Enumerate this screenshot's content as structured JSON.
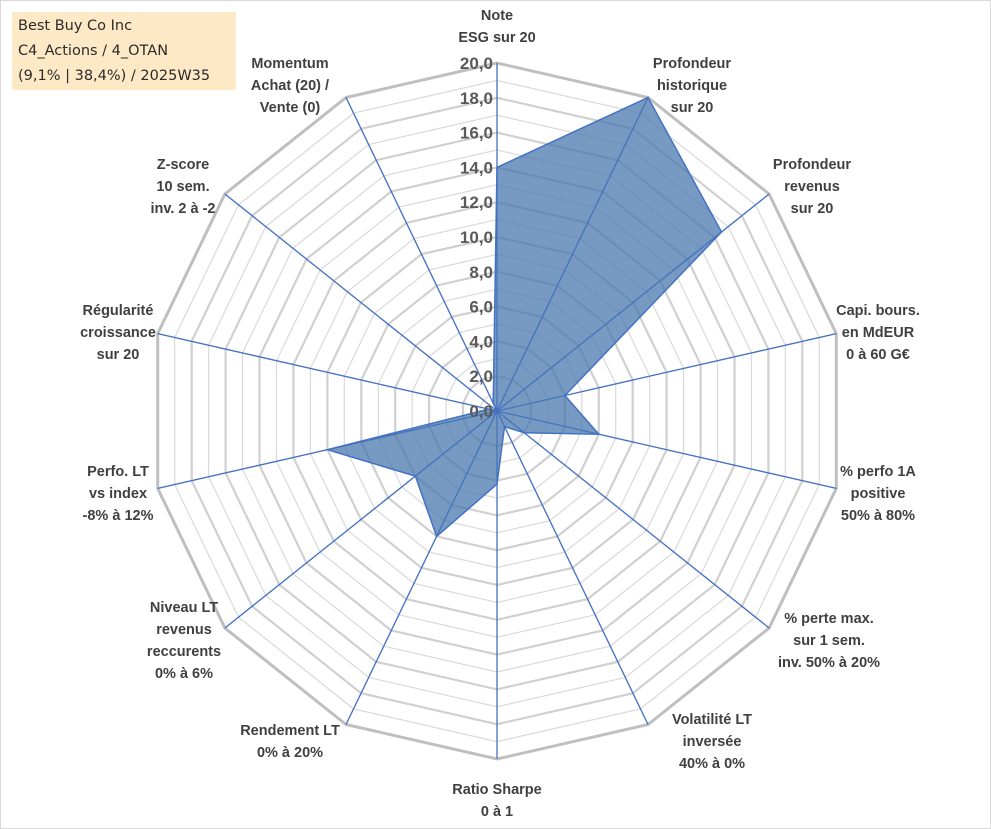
{
  "header": {
    "lines": [
      "Best Buy Co Inc",
      "C4_Actions / 4_OTAN",
      "(9,1% | 38,4%) / 2025W35"
    ]
  },
  "colors": {
    "fill": "#4a78ad",
    "spoke": "#4472c4",
    "outer_ring": "#bfbfbf",
    "inner_ring": "#d9d9d9",
    "info_bg": "#fde9c6"
  },
  "chart_data": {
    "type": "radar",
    "title": "",
    "range": [
      0,
      20
    ],
    "tick_step": 2,
    "tick_labels": [
      "0,0",
      "2,0",
      "4,0",
      "6,0",
      "8,0",
      "10,0",
      "12,0",
      "14,0",
      "16,0",
      "18,0",
      "20,0"
    ],
    "axes": [
      {
        "label": [
          "Note",
          "ESG sur 20"
        ],
        "value": 14.0
      },
      {
        "label": [
          "Profondeur",
          "historique",
          "sur 20"
        ],
        "value": 20.0
      },
      {
        "label": [
          "Profondeur",
          "revenus",
          "sur 20"
        ],
        "value": 16.5
      },
      {
        "label": [
          "Capi. bours.",
          "en MdEUR",
          "0 à 60 G€"
        ],
        "value": 4.0
      },
      {
        "label": [
          "% perfo 1A",
          "positive",
          "50% à 80%"
        ],
        "value": 6.0
      },
      {
        "label": [
          "% perte max.",
          "sur 1 sem.",
          "inv. 50% à 20%"
        ],
        "value": 2.0
      },
      {
        "label": [
          "Volatilité LT",
          "inversée",
          "40% à 0%"
        ],
        "value": 1.0
      },
      {
        "label": [
          "Ratio Sharpe",
          "0 à 1"
        ],
        "value": 4.2
      },
      {
        "label": [
          "Rendement LT",
          "0% à 20%"
        ],
        "value": 8.0
      },
      {
        "label": [
          "Niveau LT",
          "revenus",
          "reccurents",
          "0% à 6%"
        ],
        "value": 6.0
      },
      {
        "label": [
          "Perfo. LT",
          "vs index",
          "-8% à 12%"
        ],
        "value": 10.0
      },
      {
        "label": [
          "Régularité",
          "croissance",
          "sur 20"
        ],
        "value": 0.5
      },
      {
        "label": [
          "Z-score",
          "10 sem.",
          "inv. 2 à -2"
        ],
        "value": 0.0
      },
      {
        "label": [
          "Momentum",
          "Achat (20) /",
          "Vente (0)"
        ],
        "value": 0.5
      }
    ]
  }
}
